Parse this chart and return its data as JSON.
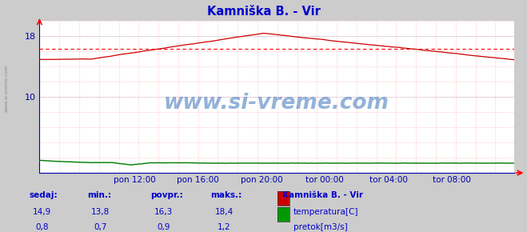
{
  "title": "Kamniška B. - Vir",
  "title_color": "#0000cc",
  "bg_color": "#cccccc",
  "plot_bg_color": "#ffffff",
  "grid_color": "#ffaaaa",
  "grid_color_major": "#aaaacc",
  "axis_color": "#0000aa",
  "temp_color": "#cc0000",
  "flow_color": "#007700",
  "avg_line_color": "#ff0000",
  "watermark": "www.si-vreme.com",
  "xtick_labels": [
    "pon 12:00",
    "pon 16:00",
    "pon 20:00",
    "tor 00:00",
    "tor 04:00",
    "tor 08:00"
  ],
  "xtick_positions": [
    72,
    120,
    168,
    216,
    264,
    312
  ],
  "total_points": 360,
  "ylim": [
    0,
    20
  ],
  "yticks": [
    10,
    18
  ],
  "temp_avg": 16.3,
  "temp_min": 13.8,
  "temp_max": 18.4,
  "temp_current": 14.9,
  "flow_current": 0.8,
  "flow_min": 0.7,
  "flow_avg": 0.9,
  "flow_max": 1.2,
  "stat_labels": [
    "sedaj:",
    "min.:",
    "povpr.:",
    "maks.:"
  ],
  "stat_color": "#0000cc",
  "legend_title": "Kamniška B. - Vir",
  "legend_items": [
    "temperatura[C]",
    "pretok[m3/s]"
  ],
  "legend_colors": [
    "#cc0000",
    "#009900"
  ]
}
